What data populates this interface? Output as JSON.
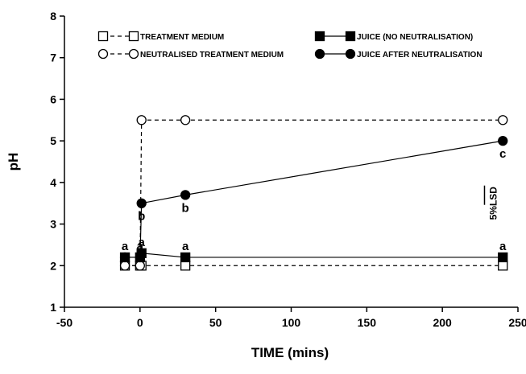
{
  "chart_data": {
    "type": "line",
    "xlabel": "TIME (mins)",
    "ylabel": "pH",
    "xlim": [
      -50,
      250
    ],
    "xticks": [
      -50,
      0,
      50,
      100,
      150,
      200,
      250
    ],
    "ylim": [
      1,
      8
    ],
    "yticks": [
      1,
      2,
      3,
      4,
      5,
      6,
      7,
      8
    ],
    "series": [
      {
        "name": "TREATMENT MEDIUM",
        "color": "#000000",
        "marker": "square",
        "filled": false,
        "dashed": true,
        "x": [
          -10,
          0,
          1,
          30,
          240
        ],
        "values": [
          2,
          2,
          2,
          2,
          2
        ]
      },
      {
        "name": "NEUTRALISED TREATMENT MEDIUM",
        "color": "#000000",
        "marker": "circle",
        "filled": false,
        "dashed": true,
        "x": [
          -10,
          0,
          1,
          30,
          240
        ],
        "values": [
          2,
          2,
          5.5,
          5.5,
          5.5
        ]
      },
      {
        "name": "JUICE (NO NEUTRALISATION)",
        "color": "#000000",
        "marker": "square",
        "filled": true,
        "dashed": false,
        "x": [
          -10,
          0,
          1,
          30,
          240
        ],
        "values": [
          2.2,
          2.2,
          2.3,
          2.2,
          2.2
        ]
      },
      {
        "name": "JUICE AFTER NEUTRALISATION",
        "color": "#000000",
        "marker": "circle",
        "filled": true,
        "dashed": false,
        "x": [
          -10,
          0,
          1,
          30,
          240
        ],
        "values": [
          2.2,
          2.2,
          3.5,
          3.7,
          5.0
        ]
      }
    ],
    "annotations": [
      {
        "text": "a",
        "x": -10,
        "y": 2.2,
        "side": "above"
      },
      {
        "text": "a",
        "x": 0,
        "y": 2.2,
        "side": "above"
      },
      {
        "text": "a",
        "x": 1,
        "y": 2.3,
        "side": "above"
      },
      {
        "text": "b",
        "x": 1,
        "y": 3.5,
        "side": "below"
      },
      {
        "text": "b",
        "x": 30,
        "y": 3.7,
        "side": "below"
      },
      {
        "text": "a",
        "x": 30,
        "y": 2.2,
        "side": "above"
      },
      {
        "text": "a",
        "x": 240,
        "y": 2.2,
        "side": "above"
      },
      {
        "text": "c",
        "x": 240,
        "y": 5.0,
        "side": "below"
      }
    ],
    "lsd_label": "5%LSD"
  }
}
